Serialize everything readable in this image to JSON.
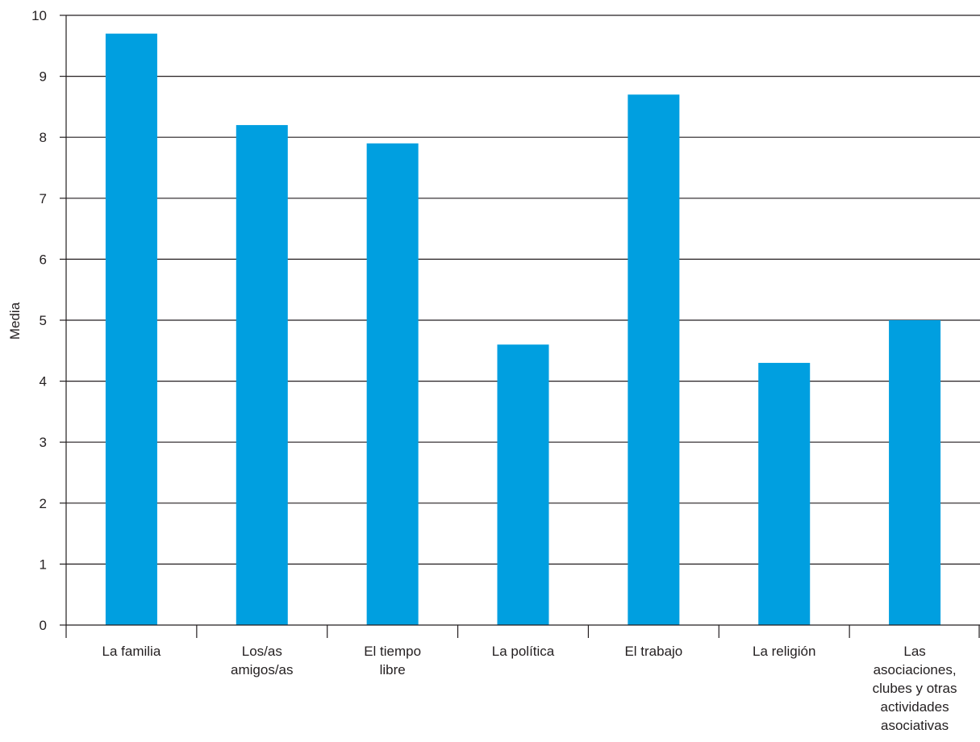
{
  "chart_data": {
    "type": "bar",
    "categories": [
      [
        "La familia"
      ],
      [
        "Los/as",
        "amigos/as"
      ],
      [
        "El tiempo",
        "libre"
      ],
      [
        "La política"
      ],
      [
        "El trabajo"
      ],
      [
        "La religión"
      ],
      [
        "Las",
        "asociaciones,",
        "clubes y otras",
        "actividades",
        "asociativas"
      ]
    ],
    "values": [
      9.7,
      8.2,
      7.9,
      4.6,
      8.7,
      4.3,
      5.0
    ],
    "title": "",
    "xlabel": "",
    "ylabel": "Media",
    "ylim": [
      0,
      10
    ],
    "yticks": [
      0,
      1,
      2,
      3,
      4,
      5,
      6,
      7,
      8,
      9,
      10
    ],
    "grid": true,
    "legend": "none",
    "colors": {
      "bar": "#009fe0",
      "grid": "#231f20",
      "text": "#231f20"
    }
  }
}
